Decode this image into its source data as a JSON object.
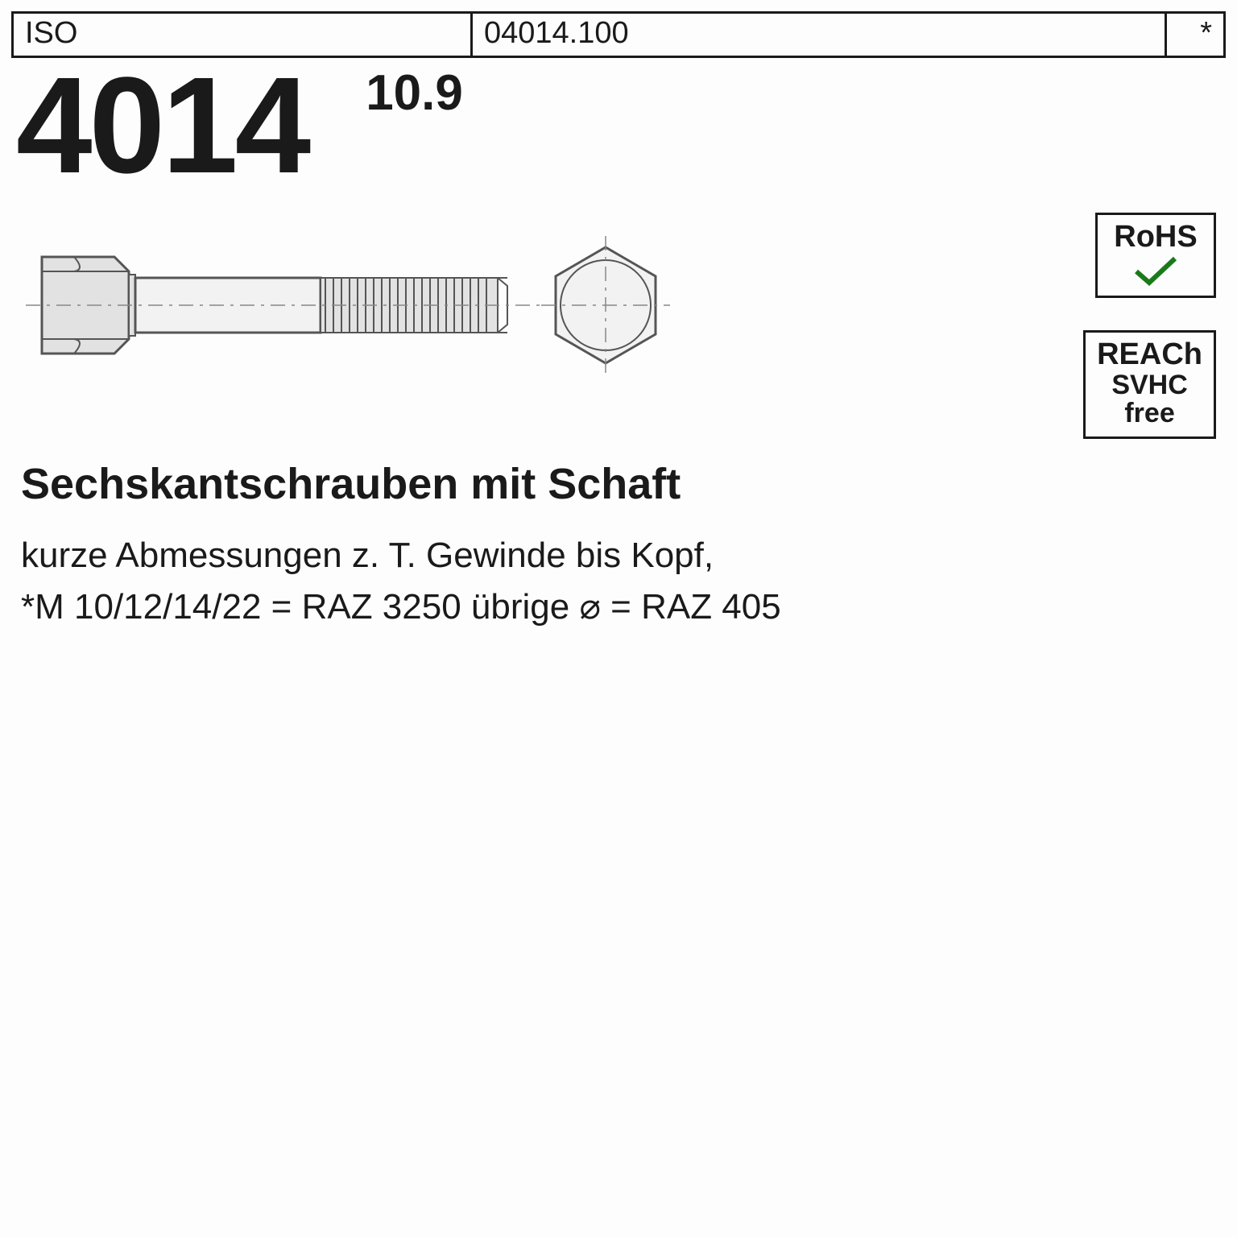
{
  "header": {
    "left": "ISO",
    "mid": "04014.100",
    "right": "*"
  },
  "main_number": "4014",
  "grade": "10.9",
  "description": {
    "title": "Sechskantschrauben mit Schaft",
    "line1": "kurze Abmessungen z. T. Gewinde bis Kopf,",
    "line2": "*M 10/12/14/22 = RAZ 3250 übrige ⌀ = RAZ 405"
  },
  "badges": {
    "rohs": {
      "label": "RoHS"
    },
    "reach": {
      "l1": "REACh",
      "l2": "SVHC",
      "l3": "free"
    }
  },
  "drawing": {
    "bolt_stroke": "#555555",
    "bolt_fill_light": "#f2f2f2",
    "bolt_fill_mid": "#e2e2e2",
    "bolt_fill_dark": "#cfcfcf",
    "centerline": "#888888"
  },
  "colors": {
    "text": "#1a1a1a",
    "bg": "#fdfdfd",
    "check": "#1a7a1a"
  }
}
